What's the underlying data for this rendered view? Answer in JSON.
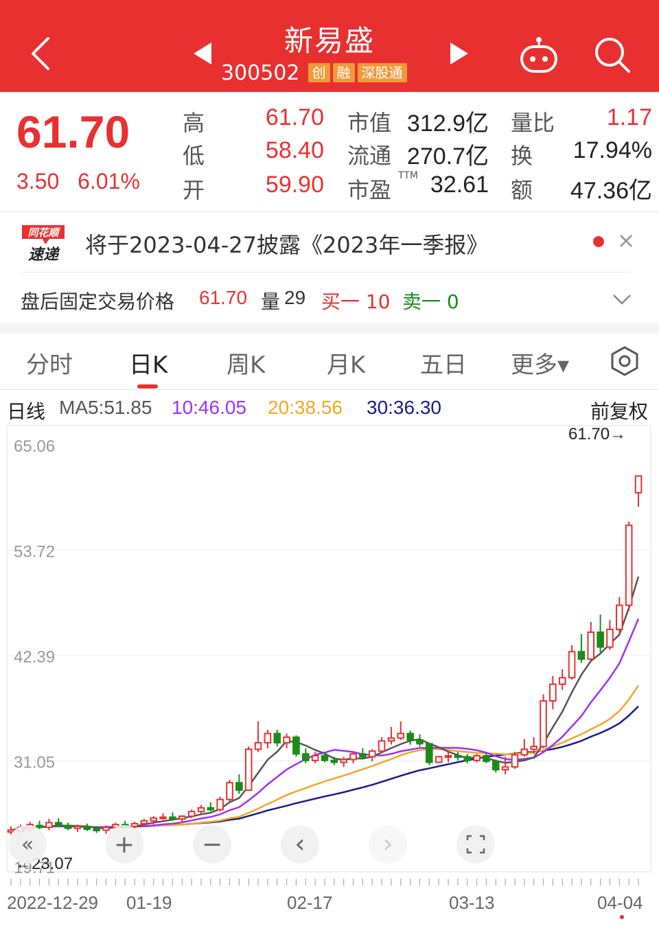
{
  "header": {
    "title": "新易盛",
    "code": "300502",
    "tags": [
      "创",
      "融",
      "深股通"
    ]
  },
  "quote": {
    "price": "61.70",
    "change": "3.50",
    "change_pct": "6.01%",
    "rows": [
      {
        "l1": "高",
        "v1": "61.70",
        "l2": "市值",
        "v2": "312.9亿",
        "l3": "量比",
        "v3": "1.17"
      },
      {
        "l1": "低",
        "v1": "58.40",
        "l2": "流通",
        "v2": "270.7亿",
        "l3": "换",
        "v3": "17.94%"
      },
      {
        "l1": "开",
        "v1": "59.90",
        "l2": "市盈",
        "v2": "32.61",
        "l3": "额",
        "v3": "47.36亿"
      }
    ],
    "ttm": "TTM"
  },
  "news": {
    "logo_line1": "同花顺",
    "logo_line2": "速递",
    "text": "将于2023-04-27披露《2023年一季报》",
    "close": "×"
  },
  "afterhours": {
    "label": "盘后固定交易价格",
    "price": "61.70",
    "vol_label": "量",
    "vol": "29",
    "buy": "买一 10",
    "sell": "卖一 0"
  },
  "tabs": [
    "分时",
    "日K",
    "周K",
    "月K",
    "五日",
    "更多▾"
  ],
  "ma": {
    "label": "日线",
    "ma5": "MA5:51.85",
    "ma10": "10:46.05",
    "ma20": "20:38.56",
    "ma30": "30:36.30",
    "right": "前复权"
  },
  "colors": {
    "red": "#e93030",
    "green": "#1a8c1a",
    "ma5": "#555555",
    "ma10": "#9b30ff",
    "ma20": "#f5a623",
    "ma30": "#1a1a8c"
  },
  "chart_data": {
    "type": "candlestick",
    "y_ticks": [
      "65.06",
      "53.72",
      "42.39",
      "31.05",
      "19.71"
    ],
    "ylim": [
      19.71,
      65.06
    ],
    "x_labels": [
      "2022-12-29",
      "01-19",
      "02-17",
      "03-13",
      "04-04"
    ],
    "price_marker": "61.70→",
    "low_marker": "←23.07",
    "candles": [
      {
        "o": 23.4,
        "h": 24.0,
        "l": 23.1,
        "c": 23.6
      },
      {
        "o": 23.5,
        "h": 24.2,
        "l": 23.2,
        "c": 23.9
      },
      {
        "o": 23.8,
        "h": 24.5,
        "l": 23.5,
        "c": 24.2
      },
      {
        "o": 24.1,
        "h": 24.6,
        "l": 23.7,
        "c": 23.9
      },
      {
        "o": 23.9,
        "h": 24.8,
        "l": 23.6,
        "c": 24.4
      },
      {
        "o": 24.4,
        "h": 24.9,
        "l": 24.0,
        "c": 24.1
      },
      {
        "o": 24.1,
        "h": 24.4,
        "l": 23.6,
        "c": 23.8
      },
      {
        "o": 23.8,
        "h": 24.2,
        "l": 23.4,
        "c": 24.0
      },
      {
        "o": 24.0,
        "h": 24.3,
        "l": 23.5,
        "c": 23.7
      },
      {
        "o": 23.7,
        "h": 24.0,
        "l": 23.3,
        "c": 23.6
      },
      {
        "o": 23.6,
        "h": 24.1,
        "l": 23.2,
        "c": 23.9
      },
      {
        "o": 23.9,
        "h": 24.4,
        "l": 23.6,
        "c": 24.2
      },
      {
        "o": 24.2,
        "h": 24.6,
        "l": 23.8,
        "c": 24.0
      },
      {
        "o": 24.0,
        "h": 24.5,
        "l": 23.7,
        "c": 24.3
      },
      {
        "o": 24.3,
        "h": 24.8,
        "l": 24.0,
        "c": 24.6
      },
      {
        "o": 24.6,
        "h": 25.1,
        "l": 24.2,
        "c": 24.9
      },
      {
        "o": 24.9,
        "h": 25.4,
        "l": 24.7,
        "c": 25.0
      },
      {
        "o": 25.0,
        "h": 25.5,
        "l": 24.6,
        "c": 24.8
      },
      {
        "o": 24.8,
        "h": 25.2,
        "l": 24.4,
        "c": 25.1
      },
      {
        "o": 25.1,
        "h": 25.8,
        "l": 24.9,
        "c": 25.6
      },
      {
        "o": 25.6,
        "h": 26.3,
        "l": 25.3,
        "c": 26.0
      },
      {
        "o": 26.0,
        "h": 26.6,
        "l": 25.6,
        "c": 25.8
      },
      {
        "o": 25.8,
        "h": 27.2,
        "l": 25.6,
        "c": 26.9
      },
      {
        "o": 26.9,
        "h": 29.0,
        "l": 26.7,
        "c": 28.7
      },
      {
        "o": 28.7,
        "h": 29.6,
        "l": 27.5,
        "c": 27.9
      },
      {
        "o": 27.9,
        "h": 32.6,
        "l": 27.8,
        "c": 32.3
      },
      {
        "o": 32.3,
        "h": 35.3,
        "l": 32.0,
        "c": 33.0
      },
      {
        "o": 33.0,
        "h": 34.4,
        "l": 32.4,
        "c": 34.0
      },
      {
        "o": 34.0,
        "h": 34.4,
        "l": 32.6,
        "c": 33.0
      },
      {
        "o": 33.0,
        "h": 34.0,
        "l": 32.4,
        "c": 33.6
      },
      {
        "o": 33.6,
        "h": 33.8,
        "l": 31.5,
        "c": 31.8
      },
      {
        "o": 31.8,
        "h": 32.4,
        "l": 30.8,
        "c": 31.1
      },
      {
        "o": 31.1,
        "h": 32.0,
        "l": 30.8,
        "c": 31.6
      },
      {
        "o": 31.6,
        "h": 31.9,
        "l": 30.9,
        "c": 31.1
      },
      {
        "o": 31.1,
        "h": 31.5,
        "l": 30.6,
        "c": 30.9
      },
      {
        "o": 30.9,
        "h": 31.5,
        "l": 30.4,
        "c": 31.2
      },
      {
        "o": 31.2,
        "h": 32.1,
        "l": 30.8,
        "c": 31.8
      },
      {
        "o": 31.8,
        "h": 32.4,
        "l": 31.2,
        "c": 31.5
      },
      {
        "o": 31.5,
        "h": 32.3,
        "l": 31.0,
        "c": 32.1
      },
      {
        "o": 32.1,
        "h": 33.6,
        "l": 31.9,
        "c": 33.2
      },
      {
        "o": 33.2,
        "h": 34.7,
        "l": 32.8,
        "c": 33.5
      },
      {
        "o": 33.5,
        "h": 35.3,
        "l": 33.3,
        "c": 34.0
      },
      {
        "o": 34.0,
        "h": 34.3,
        "l": 32.8,
        "c": 33.3
      },
      {
        "o": 33.3,
        "h": 33.9,
        "l": 32.6,
        "c": 32.9
      },
      {
        "o": 32.9,
        "h": 33.0,
        "l": 30.6,
        "c": 30.9
      },
      {
        "o": 30.9,
        "h": 31.6,
        "l": 30.8,
        "c": 31.5
      },
      {
        "o": 31.5,
        "h": 32.0,
        "l": 30.9,
        "c": 31.6
      },
      {
        "o": 31.6,
        "h": 32.0,
        "l": 31.1,
        "c": 31.5
      },
      {
        "o": 31.5,
        "h": 31.8,
        "l": 30.8,
        "c": 31.1
      },
      {
        "o": 31.1,
        "h": 31.8,
        "l": 30.9,
        "c": 31.6
      },
      {
        "o": 31.6,
        "h": 31.8,
        "l": 30.8,
        "c": 31.0
      },
      {
        "o": 31.0,
        "h": 31.2,
        "l": 29.8,
        "c": 30.1
      },
      {
        "o": 30.1,
        "h": 31.5,
        "l": 29.6,
        "c": 30.4
      },
      {
        "o": 30.4,
        "h": 32.0,
        "l": 30.2,
        "c": 31.7
      },
      {
        "o": 31.7,
        "h": 33.4,
        "l": 31.5,
        "c": 32.3
      },
      {
        "o": 32.3,
        "h": 33.6,
        "l": 31.8,
        "c": 32.6
      },
      {
        "o": 32.6,
        "h": 38.2,
        "l": 32.4,
        "c": 37.5
      },
      {
        "o": 37.5,
        "h": 40.2,
        "l": 36.6,
        "c": 39.3
      },
      {
        "o": 39.3,
        "h": 40.9,
        "l": 38.7,
        "c": 40.0
      },
      {
        "o": 40.0,
        "h": 43.5,
        "l": 39.8,
        "c": 42.8
      },
      {
        "o": 42.8,
        "h": 44.7,
        "l": 41.6,
        "c": 42.0
      },
      {
        "o": 42.0,
        "h": 46.0,
        "l": 41.8,
        "c": 44.9
      },
      {
        "o": 44.9,
        "h": 46.8,
        "l": 42.6,
        "c": 43.3
      },
      {
        "o": 43.3,
        "h": 46.2,
        "l": 43.0,
        "c": 45.2
      },
      {
        "o": 45.2,
        "h": 48.7,
        "l": 44.6,
        "c": 47.8
      },
      {
        "o": 47.8,
        "h": 56.8,
        "l": 47.2,
        "c": 56.4
      },
      {
        "o": 59.9,
        "h": 61.7,
        "l": 58.4,
        "c": 61.7
      }
    ]
  },
  "controls": {
    "prev": "«",
    "zoom_in": "+",
    "zoom_out": "−",
    "left": "‹",
    "right": "›"
  }
}
